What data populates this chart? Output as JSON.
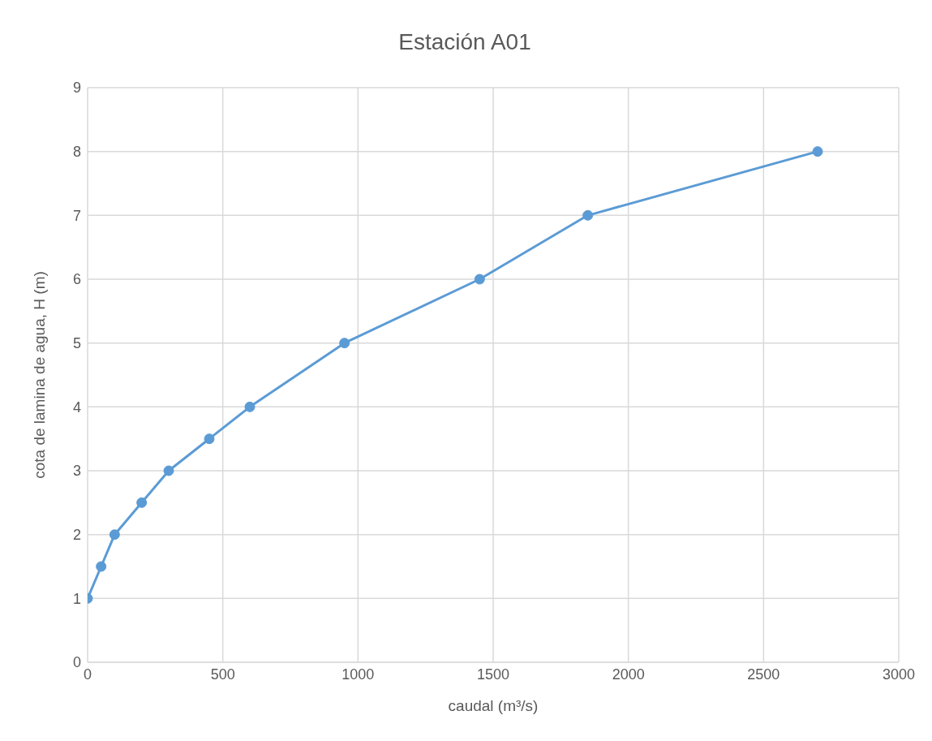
{
  "chart_data": {
    "type": "line",
    "title": "Estación A01",
    "xlabel": "caudal (m³/s)",
    "ylabel": "cota de lamina de agua, H (m)",
    "x": [
      0,
      50,
      100,
      200,
      300,
      450,
      600,
      950,
      1450,
      1850,
      2700
    ],
    "series": [
      {
        "color": "#5b9bd5",
        "values": [
          1,
          1.5,
          2,
          2.5,
          3,
          3.5,
          4,
          5,
          6,
          7,
          8
        ]
      }
    ],
    "xlim": [
      0,
      3000
    ],
    "xticks": [
      0,
      500,
      1000,
      1500,
      2000,
      2500,
      3000
    ],
    "ylim": [
      0,
      9
    ],
    "yticks": [
      0,
      1,
      2,
      3,
      4,
      5,
      6,
      7,
      8,
      9
    ],
    "grid": true,
    "legend": false,
    "marker": "circle",
    "line_style": "solid"
  }
}
